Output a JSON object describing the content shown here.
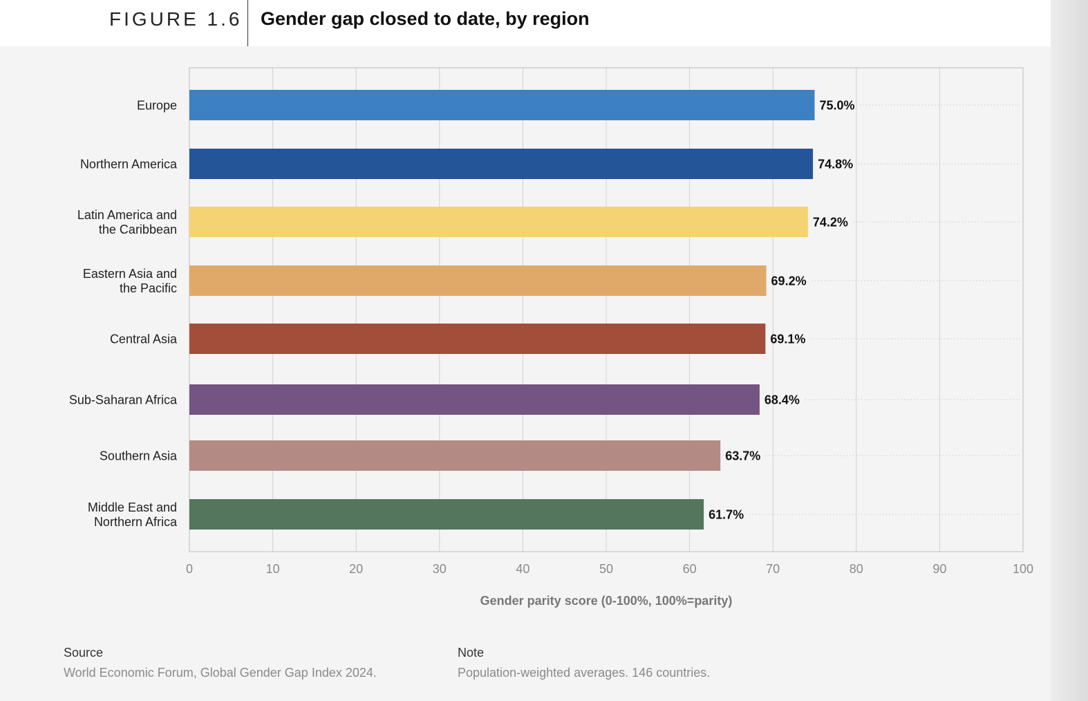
{
  "header": {
    "figure_label": "FIGURE 1.6",
    "title": "Gender gap closed to date, by region"
  },
  "chart_data": {
    "type": "bar",
    "orientation": "horizontal",
    "categories": [
      "Europe",
      "Northern America",
      "Latin America and the Caribbean",
      "Eastern Asia and the Pacific",
      "Central Asia",
      "Sub-Saharan Africa",
      "Southern Asia",
      "Middle East and Northern Africa"
    ],
    "category_lines": [
      [
        "Europe"
      ],
      [
        "Northern America"
      ],
      [
        "Latin America and",
        "the Caribbean"
      ],
      [
        "Eastern Asia and",
        "the Pacific"
      ],
      [
        "Central Asia"
      ],
      [
        "Sub-Saharan Africa"
      ],
      [
        "Southern Asia"
      ],
      [
        "Middle East and",
        "Northern Africa"
      ]
    ],
    "values": [
      75.0,
      74.8,
      74.2,
      69.2,
      69.1,
      68.4,
      63.7,
      61.7
    ],
    "data_labels": [
      "75.0%",
      "74.8%",
      "74.2%",
      "69.2%",
      "69.1%",
      "68.4%",
      "63.7%",
      "61.7%"
    ],
    "colors": [
      "#3d80c3",
      "#245598",
      "#f6d372",
      "#e0a96a",
      "#a24e3a",
      "#735482",
      "#b38b84",
      "#54765c"
    ],
    "xlim": [
      0,
      100
    ],
    "xticks": [
      0,
      10,
      20,
      30,
      40,
      50,
      60,
      70,
      80,
      90,
      100
    ],
    "xlabel": "Gender parity score (0-100%, 100%=parity)",
    "grid": true,
    "legend": "none"
  },
  "footer": {
    "source_label": "Source",
    "source_text": "World Economic Forum, Global Gender Gap Index 2024.",
    "note_label": "Note",
    "note_text": "Population-weighted averages. 146 countries."
  }
}
